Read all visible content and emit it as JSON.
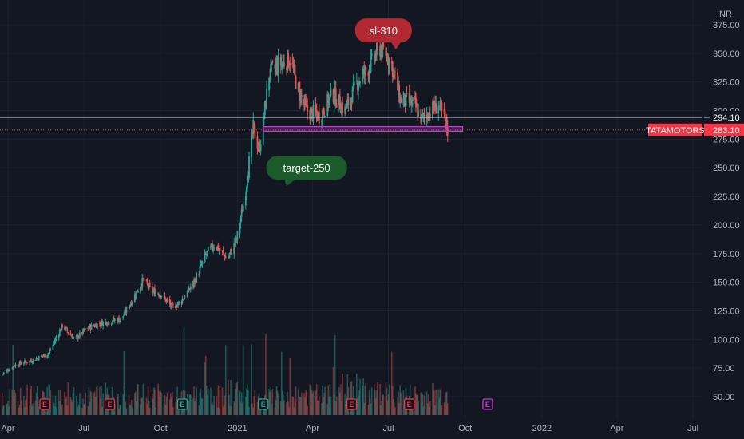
{
  "chart_data": {
    "type": "candlestick",
    "symbol": "TATAMOTORS",
    "currency": "INR",
    "last_price": "283.10",
    "crosshair_price": "294.10",
    "ylim": [
      38,
      382
    ],
    "y_ticks": [
      "375.00",
      "350.00",
      "325.00",
      "300.00",
      "275.00",
      "250.00",
      "225.00",
      "200.00",
      "175.00",
      "150.00",
      "125.00",
      "100.00",
      "75.00",
      "50.00"
    ],
    "y_tick_values": [
      375,
      350,
      325,
      300,
      275,
      250,
      225,
      200,
      175,
      150,
      125,
      100,
      75,
      50
    ],
    "x_ticks": [
      "Apr",
      "Jul",
      "Oct",
      "2021",
      "Apr",
      "Jul",
      "Oct",
      "2022",
      "Apr",
      "Jul"
    ],
    "x_tick_dates": [
      "2020-04-01",
      "2020-07-01",
      "2020-10-01",
      "2021-01-01",
      "2021-04-01",
      "2021-07-01",
      "2021-10-01",
      "2022-01-01",
      "2022-04-01",
      "2022-07-01"
    ],
    "price_path": [
      [
        "2020-03-25",
        70
      ],
      [
        "2020-04-10",
        78
      ],
      [
        "2020-05-01",
        82
      ],
      [
        "2020-05-20",
        88
      ],
      [
        "2020-06-05",
        112
      ],
      [
        "2020-06-20",
        100
      ],
      [
        "2020-07-05",
        110
      ],
      [
        "2020-07-25",
        115
      ],
      [
        "2020-08-15",
        118
      ],
      [
        "2020-09-01",
        140
      ],
      [
        "2020-09-10",
        152
      ],
      [
        "2020-09-20",
        142
      ],
      [
        "2020-10-01",
        140
      ],
      [
        "2020-10-15",
        128
      ],
      [
        "2020-10-25",
        133
      ],
      [
        "2020-11-10",
        150
      ],
      [
        "2020-11-25",
        175
      ],
      [
        "2020-12-05",
        183
      ],
      [
        "2020-12-20",
        170
      ],
      [
        "2020-12-31",
        187
      ],
      [
        "2021-01-10",
        225
      ],
      [
        "2021-01-20",
        285
      ],
      [
        "2021-01-27",
        265
      ],
      [
        "2021-02-01",
        290
      ],
      [
        "2021-02-08",
        332
      ],
      [
        "2021-02-20",
        340
      ],
      [
        "2021-03-05",
        345
      ],
      [
        "2021-03-15",
        318
      ],
      [
        "2021-03-25",
        300
      ],
      [
        "2021-04-10",
        295
      ],
      [
        "2021-04-25",
        315
      ],
      [
        "2021-05-10",
        300
      ],
      [
        "2021-05-25",
        325
      ],
      [
        "2021-06-10",
        340
      ],
      [
        "2021-06-20",
        355
      ],
      [
        "2021-06-28",
        350
      ],
      [
        "2021-07-05",
        340
      ],
      [
        "2021-07-15",
        310
      ],
      [
        "2021-08-01",
        305
      ],
      [
        "2021-08-10",
        292
      ],
      [
        "2021-08-20",
        300
      ],
      [
        "2021-08-30",
        305
      ],
      [
        "2021-09-07",
        290
      ],
      [
        "2021-09-10",
        283
      ]
    ],
    "volume_path": [
      0.35,
      0.5,
      0.55,
      0.4,
      0.6,
      0.45,
      0.5,
      0.4,
      0.55,
      0.45,
      0.7,
      0.5,
      0.4,
      0.55,
      0.5,
      0.9,
      0.7,
      0.55,
      0.5,
      0.6
    ],
    "support_zone": {
      "from": "2021-02-01",
      "to": "2021-09-28",
      "low": 282,
      "high": 286,
      "color": "#c339d1"
    },
    "annotations": [
      {
        "text": "sl-310",
        "date": "2021-06-25",
        "price": 370,
        "color": "#b22833",
        "pointer": "bottom-right"
      },
      {
        "text": "target-250",
        "date": "2021-03-25",
        "price": 250,
        "color": "#1b5a2b",
        "pointer": "bottom"
      }
    ],
    "earnings": [
      {
        "date": "2020-05-15",
        "color": "#f23645",
        "label": "E"
      },
      {
        "date": "2020-08-01",
        "color": "#f23645",
        "label": "E"
      },
      {
        "date": "2020-10-27",
        "color": "#22ab94",
        "label": "E"
      },
      {
        "date": "2021-02-01",
        "color": "#22ab94",
        "label": "E"
      },
      {
        "date": "2021-05-18",
        "color": "#f23645",
        "label": "E"
      },
      {
        "date": "2021-07-26",
        "color": "#f23645",
        "label": "E"
      },
      {
        "date": "2021-10-28",
        "color": "#c339d1",
        "label": "E"
      }
    ],
    "colors": {
      "background": "#131722",
      "up": "#26a69a",
      "down": "#ef5350",
      "grid": "#1e222d",
      "last_price": "#f23645",
      "crosshair": "#d1d4dc"
    }
  }
}
